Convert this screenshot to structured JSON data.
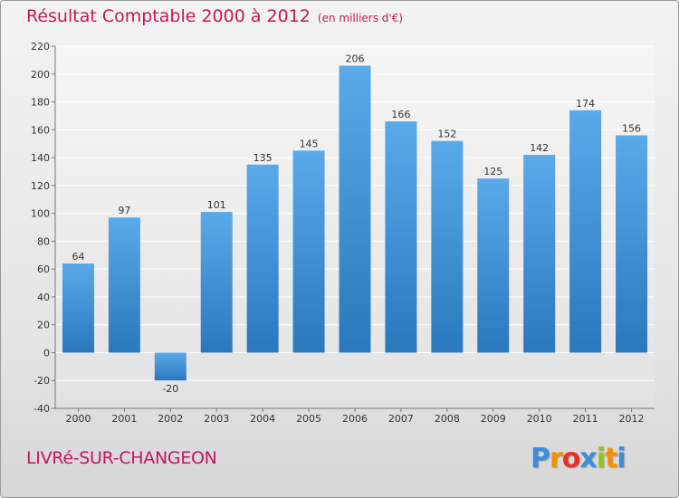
{
  "header": {
    "title": "Résultat Comptable 2000 à 2012",
    "subtitle": "(en milliers d'€)"
  },
  "footer": {
    "commune": "LIVRé-SUR-CHANGEON",
    "logo_letters": [
      "P",
      "r",
      "o",
      "x",
      "i",
      "t",
      "i"
    ],
    "logo_colors": [
      "#3a8fd8",
      "#f39200",
      "#e6332a",
      "#3a8fd8",
      "#95c11f",
      "#f39200",
      "#3a8fd8"
    ]
  },
  "chart_data": {
    "type": "bar",
    "title": "Résultat Comptable 2000 à 2012",
    "xlabel": "",
    "ylabel": "",
    "categories": [
      "2000",
      "2001",
      "2002",
      "2003",
      "2004",
      "2005",
      "2006",
      "2007",
      "2008",
      "2009",
      "2010",
      "2011",
      "2012"
    ],
    "values": [
      64,
      97,
      -20,
      101,
      135,
      145,
      206,
      166,
      152,
      125,
      142,
      174,
      156
    ],
    "labels": [
      "64",
      "97",
      "-20",
      "101",
      "135",
      "145",
      "206",
      "166",
      "152",
      "125",
      "142",
      "174",
      "156"
    ],
    "ylim": [
      -40,
      220
    ],
    "yticks": [
      -40,
      -20,
      0,
      20,
      40,
      60,
      80,
      100,
      120,
      140,
      160,
      180,
      200,
      220
    ],
    "ytick_labels": [
      "-40",
      "-20",
      "0",
      "20",
      "40",
      "60",
      "80",
      "100",
      "120",
      "140",
      "160",
      "180",
      "200",
      "220"
    ],
    "grid": true,
    "bar_color_top": "#5aaaea",
    "bar_color_bottom": "#2a78bd"
  }
}
